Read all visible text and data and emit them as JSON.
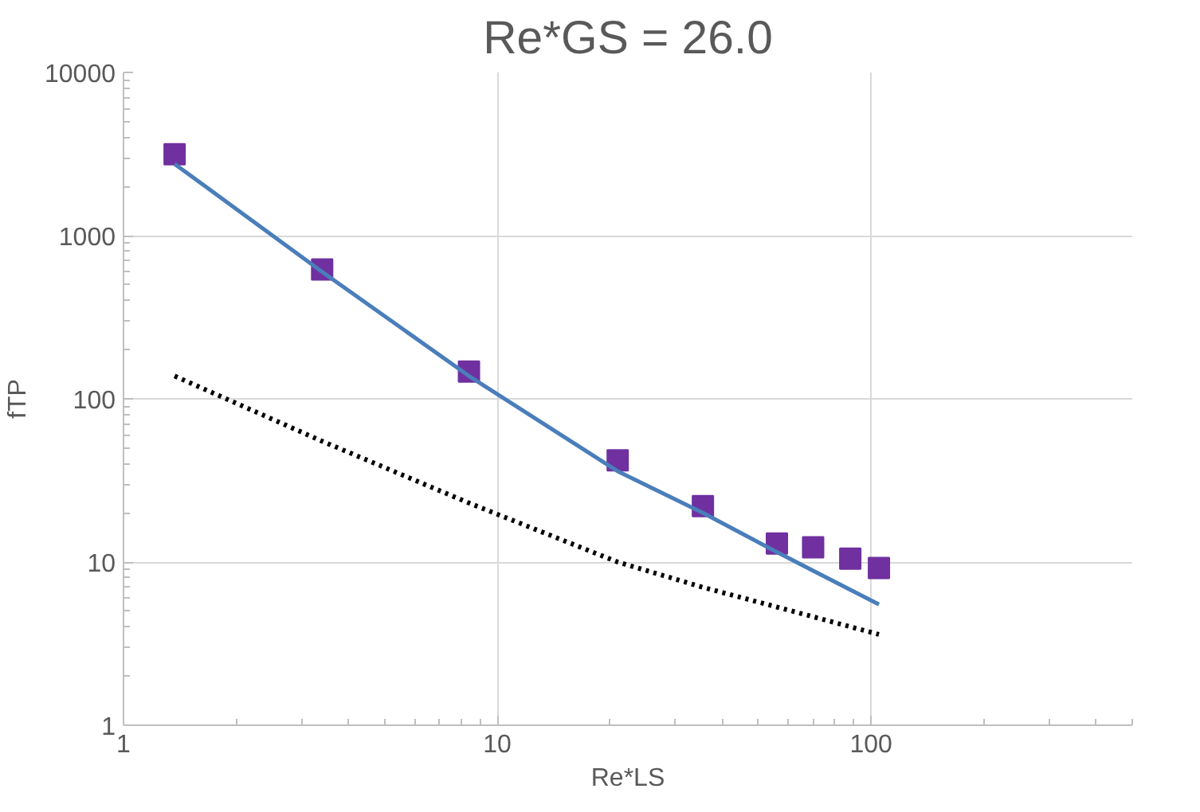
{
  "chart_data": {
    "type": "scatter",
    "title": "Re*GS = 26.0",
    "xlabel": "Re*LS",
    "ylabel": "fTP",
    "log": "xy",
    "xlim": [
      1,
      500
    ],
    "xticks": [
      1,
      10,
      100
    ],
    "ylim": [
      1,
      10000
    ],
    "yticks": [
      1,
      10,
      100,
      1000,
      10000
    ],
    "grid": true,
    "series": [
      {
        "marker": "square",
        "color": "#7030a0",
        "x": [
          1.37,
          3.4,
          8.4,
          21,
          35.5,
          56,
          70,
          88,
          105
        ],
        "values": [
          3150,
          620,
          147,
          42,
          22,
          13,
          12.3,
          10.5,
          9.2
        ]
      },
      {
        "type": "line",
        "line_style": "solid",
        "color": "#4a7ebb",
        "x": [
          1.37,
          3.4,
          8.4,
          21,
          35.5,
          56,
          105
        ],
        "values": [
          2750,
          600,
          138,
          36,
          20,
          11.5,
          5.5
        ]
      },
      {
        "type": "line",
        "line_style": "dotted",
        "color": "#000000",
        "x": [
          1.37,
          3.4,
          8.4,
          21,
          35.5,
          56,
          105
        ],
        "values": [
          138,
          55,
          23,
          10,
          7,
          5.3,
          3.6
        ]
      }
    ]
  }
}
